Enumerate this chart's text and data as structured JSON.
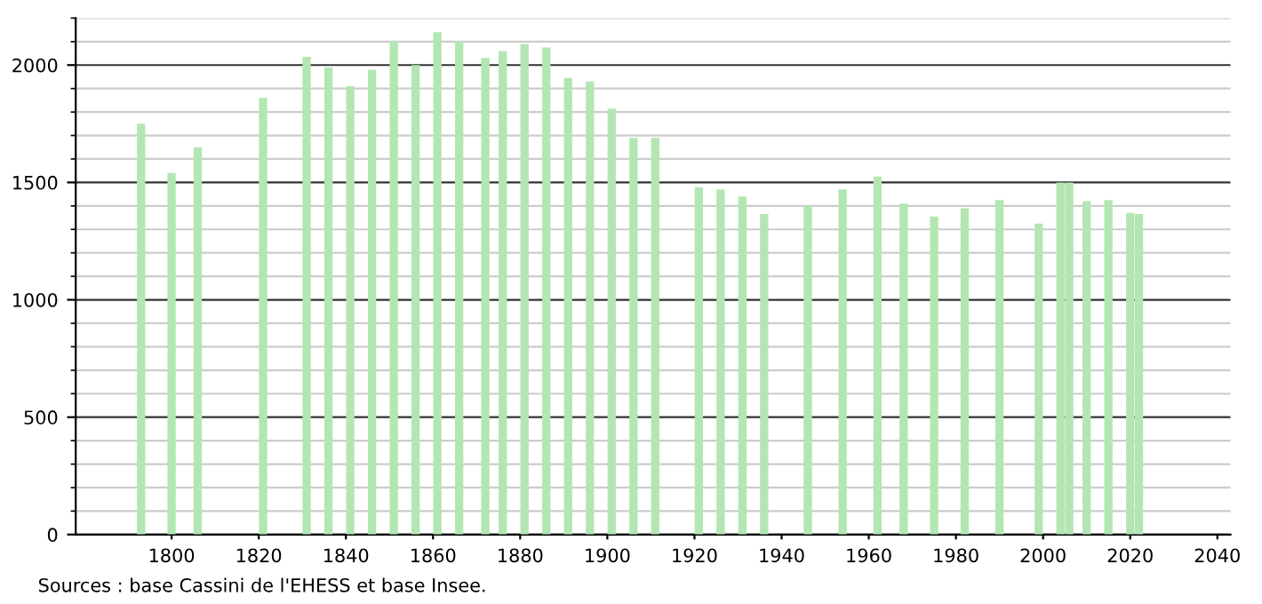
{
  "chart_data": {
    "type": "bar",
    "x": [
      1793,
      1800,
      1806,
      1821,
      1831,
      1836,
      1841,
      1846,
      1851,
      1856,
      1861,
      1866,
      1872,
      1876,
      1881,
      1886,
      1891,
      1896,
      1901,
      1906,
      1911,
      1921,
      1926,
      1931,
      1936,
      1946,
      1954,
      1962,
      1968,
      1975,
      1982,
      1990,
      1999,
      2004,
      2006,
      2010,
      2015,
      2020,
      2022
    ],
    "values": [
      1750,
      1540,
      1650,
      1860,
      2035,
      1990,
      1910,
      1980,
      2100,
      2000,
      2140,
      2100,
      2030,
      2060,
      2090,
      2075,
      1945,
      1930,
      1815,
      1690,
      1690,
      1480,
      1470,
      1440,
      1365,
      1400,
      1470,
      1525,
      1410,
      1355,
      1390,
      1425,
      1325,
      1500,
      1500,
      1420,
      1425,
      1370,
      1365
    ],
    "color": "#b3e6b3",
    "xlim": [
      1778,
      2043
    ],
    "xticks": [
      1800,
      1820,
      1840,
      1860,
      1880,
      1900,
      1920,
      1940,
      1960,
      1980,
      2000,
      2020,
      2040
    ],
    "ylim": [
      0,
      2200
    ],
    "yticks": [
      0,
      500,
      1000,
      1500,
      2000
    ],
    "grid": "y",
    "annotations": [
      "Sources : base Cassini de l'EHESS et base Insee."
    ]
  }
}
